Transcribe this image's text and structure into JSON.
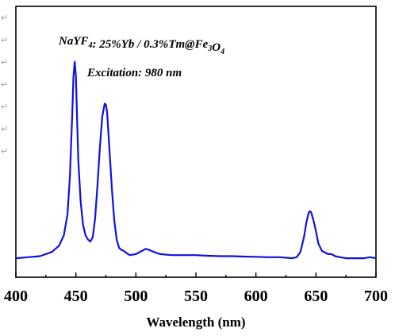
{
  "chart_data": {
    "type": "line",
    "title": "",
    "xlabel": "Wavelength (nm)",
    "ylabel": "",
    "xlim": [
      400,
      700
    ],
    "ylim": [
      0,
      1.0
    ],
    "x_ticks": [
      400,
      450,
      500,
      550,
      600,
      650,
      700
    ],
    "grid": false,
    "line_color": "#1010e0",
    "annotations": [
      {
        "parts": [
          {
            "text": "NaYF",
            "sub": false
          },
          {
            "text": "4",
            "sub": true
          },
          {
            "text": ": 25%Yb / 0.3%Tm@Fe",
            "sub": false
          },
          {
            "text": "3",
            "sub": true
          },
          {
            "text": "O",
            "sub": false
          },
          {
            "text": "4",
            "sub": true
          }
        ]
      },
      {
        "parts": [
          {
            "text": "Excitation: 980 nm",
            "sub": false
          }
        ]
      }
    ],
    "margin_marks": [
      "↵",
      "↵",
      "↵",
      "↵",
      "↵",
      "↵",
      "↵"
    ],
    "series": [
      {
        "x": [
          400,
          410,
          420,
          430,
          436,
          440,
          443,
          445,
          447,
          448,
          449,
          450,
          451,
          452,
          454,
          456,
          458,
          460,
          462,
          464,
          466,
          468,
          470,
          472,
          474,
          475,
          476,
          477,
          478,
          480,
          482,
          484,
          486,
          488,
          490,
          492,
          495,
          500,
          505,
          508,
          511,
          515,
          520,
          530,
          540,
          550,
          560,
          570,
          580,
          590,
          600,
          610,
          620,
          630,
          634,
          637,
          640,
          642,
          644,
          645,
          646,
          648,
          650,
          652,
          655,
          660,
          663,
          666,
          670,
          675,
          680,
          685,
          690,
          695,
          700
        ],
        "y": [
          0.03,
          0.035,
          0.04,
          0.06,
          0.09,
          0.14,
          0.24,
          0.42,
          0.72,
          0.9,
          0.97,
          0.9,
          0.7,
          0.5,
          0.3,
          0.19,
          0.14,
          0.12,
          0.11,
          0.13,
          0.22,
          0.38,
          0.56,
          0.71,
          0.77,
          0.765,
          0.73,
          0.64,
          0.55,
          0.36,
          0.21,
          0.12,
          0.08,
          0.07,
          0.065,
          0.055,
          0.045,
          0.05,
          0.065,
          0.075,
          0.07,
          0.06,
          0.05,
          0.045,
          0.045,
          0.045,
          0.042,
          0.04,
          0.04,
          0.038,
          0.037,
          0.035,
          0.035,
          0.03,
          0.035,
          0.06,
          0.13,
          0.2,
          0.25,
          0.255,
          0.25,
          0.21,
          0.16,
          0.1,
          0.065,
          0.05,
          0.05,
          0.04,
          0.035,
          0.03,
          0.03,
          0.03,
          0.03,
          0.035,
          0.03
        ]
      }
    ]
  }
}
